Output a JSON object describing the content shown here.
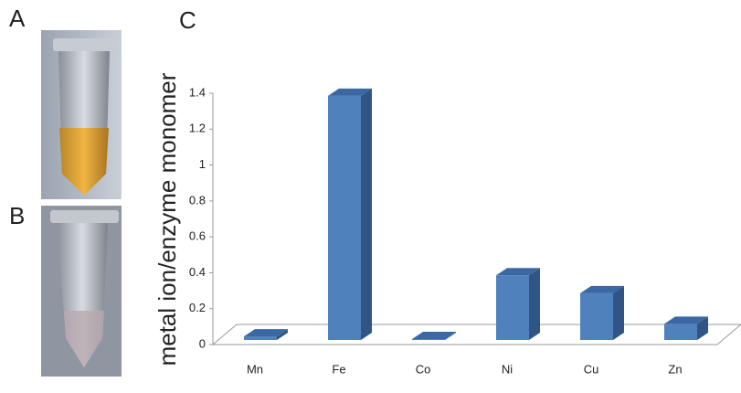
{
  "panels": [
    "A",
    "B",
    "C"
  ],
  "chart_data": {
    "type": "bar3d",
    "ylabel": "metal ion/enzyme monomer",
    "categories": [
      "Mn",
      "Fe",
      "Co",
      "Ni",
      "Cu",
      "Zn"
    ],
    "values": [
      0.02,
      1.36,
      0.005,
      0.36,
      0.26,
      0.09
    ],
    "color": "#4f81bd",
    "ylim": [
      0,
      1.4
    ],
    "yticks": [
      0,
      0.2,
      0.4,
      0.6,
      0.8,
      1,
      1.2,
      1.4
    ],
    "grid": false
  }
}
